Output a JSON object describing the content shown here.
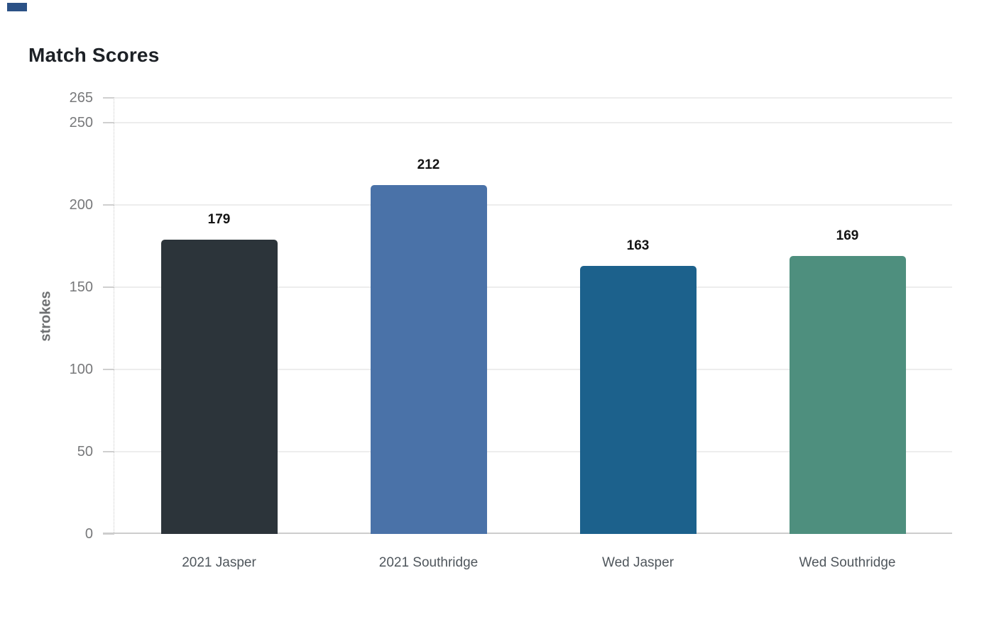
{
  "window": {
    "corner_mark_color": "#2b5186"
  },
  "chart_data": {
    "type": "bar",
    "title": "Match Scores",
    "xlabel": "",
    "ylabel": "strokes",
    "categories": [
      "2021 Jasper",
      "2021 Southridge",
      "Wed Jasper",
      "Wed Southridge"
    ],
    "values": [
      179,
      212,
      163,
      169
    ],
    "value_labels": [
      "179",
      "212",
      "163",
      "169"
    ],
    "bar_colors": [
      "#2c343a",
      "#4a72a8",
      "#1c618c",
      "#4e8f7e"
    ],
    "yticks": [
      0,
      50,
      100,
      150,
      200,
      250,
      265
    ],
    "ylim": [
      0,
      265
    ],
    "grid": "horizontal",
    "legend": "none",
    "colors": {
      "grid": "#ededed",
      "axis": "#cdcdcd",
      "tick_label": "#77787a",
      "category_label": "#4f565c",
      "value_label": "#141414",
      "title": "#1d2126",
      "ylabel": "#6d6f71"
    }
  }
}
